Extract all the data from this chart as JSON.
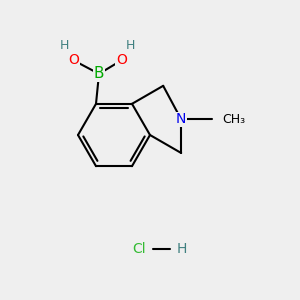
{
  "bg_color": "#efefef",
  "bond_color": "#000000",
  "bond_width": 1.5,
  "atom_colors": {
    "B": "#00aa00",
    "O": "#ff0000",
    "N": "#0000ee",
    "H": "#408080",
    "Cl": "#33bb33",
    "C": "#000000"
  },
  "font_size": 10
}
